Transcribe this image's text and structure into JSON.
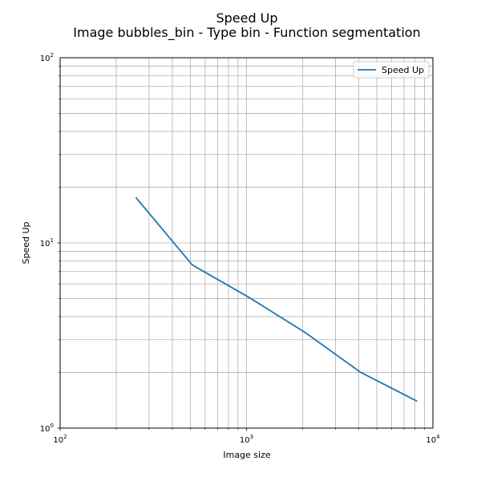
{
  "chart_data": {
    "type": "line",
    "title": "Speed Up",
    "subtitle": "Image bubbles_bin - Type bin - Function segmentation",
    "xlabel": "Image size",
    "ylabel": "Speed Up",
    "xscale": "log",
    "yscale": "log",
    "xlim": [
      100,
      10000
    ],
    "ylim": [
      1,
      100
    ],
    "grid": "major and minor",
    "legend_position": "top-right",
    "x_ticks": [
      {
        "base": "10",
        "exp": "2",
        "value": 100
      },
      {
        "base": "10",
        "exp": "3",
        "value": 1000
      },
      {
        "base": "10",
        "exp": "4",
        "value": 10000
      }
    ],
    "y_ticks": [
      {
        "base": "10",
        "exp": "0",
        "value": 1
      },
      {
        "base": "10",
        "exp": "1",
        "value": 10
      },
      {
        "base": "10",
        "exp": "2",
        "value": 100
      }
    ],
    "series": [
      {
        "name": "Speed Up",
        "color": "#1f77b4",
        "x": [
          256,
          512,
          1024,
          2048,
          4096,
          8192
        ],
        "y": [
          17.5,
          7.6,
          5.1,
          3.3,
          2.0,
          1.4
        ]
      }
    ]
  }
}
